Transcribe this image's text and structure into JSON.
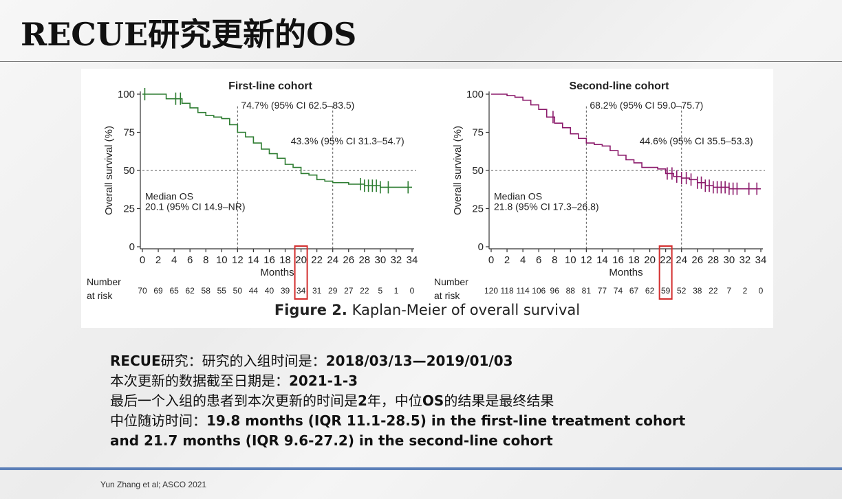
{
  "slide": {
    "title": "RECUE研究更新的OS",
    "caption_bold": "Figure 2.",
    "caption_rest": " Kaplan-Meier of overall survival",
    "citation": "Yun Zhang et al; ASCO 2021"
  },
  "notes": {
    "line1_a": "RECUE",
    "line1_b": "研究：研究的入组时间是：",
    "line1_c": "2018/03/13—2019/01/03",
    "line2_a": "本次更新的数据截至日期是：",
    "line2_b": "2021-1-3",
    "line3_a": "最后一个入组的患者到本次更新的时间是",
    "line3_b": "2",
    "line3_c": "年，中位",
    "line3_d": "OS",
    "line3_e": "的结果是最终结果",
    "line4_a": "中位随访时间：",
    "line4_b": "19.8 months (IQR 11.1-28.5) in the first-line treatment cohort",
    "line5": "and 21.7 months (IQR 9.6-27.2) in the second-line cohort"
  },
  "colors": {
    "first_line": "#2e7d32",
    "second_line": "#8b1a6b",
    "highlight_box": "#d32f2f",
    "reference": "#555555"
  },
  "chart_data": [
    {
      "type": "line",
      "title": "First-line cohort",
      "xlabel": "Months",
      "ylabel": "Overall survival (%)",
      "xlim": [
        0,
        34
      ],
      "ylim": [
        0,
        100
      ],
      "xticks": [
        0,
        2,
        4,
        6,
        8,
        10,
        12,
        14,
        16,
        18,
        20,
        22,
        24,
        26,
        28,
        30,
        32,
        34
      ],
      "yticks": [
        0,
        25,
        50,
        75,
        100
      ],
      "series": [
        {
          "x": [
            0,
            2,
            3,
            4,
            5,
            6,
            7,
            8,
            9,
            10,
            11,
            12,
            13,
            14,
            15,
            16,
            17,
            18,
            19,
            20,
            21,
            22,
            23,
            24,
            26,
            28,
            30,
            32,
            34
          ],
          "y": [
            100,
            100,
            97,
            97,
            94,
            91,
            88,
            86,
            85,
            84,
            80,
            75,
            72,
            68,
            64,
            61,
            58,
            54,
            52,
            48,
            47,
            44,
            43,
            42,
            41,
            40,
            39,
            39,
            39
          ],
          "censor_x": [
            0.3,
            4.2,
            4.8,
            27.5,
            28,
            28.5,
            29,
            29.5,
            30,
            31,
            33.5
          ]
        }
      ],
      "annotations": [
        {
          "text": "74.7% (95% CI 62.5–83.5)",
          "x": 12,
          "y": 75
        },
        {
          "text": "43.3% (95% CI 31.3–54.7)",
          "x": 24,
          "y": 43.3
        },
        {
          "text": "Median OS",
          "x": 0,
          "y": 34
        },
        {
          "text": "20.1 (95% CI 14.9–NR)",
          "x": 0,
          "y": 27
        }
      ],
      "reference_lines": {
        "h": 50,
        "v": [
          12,
          24
        ]
      },
      "risk_table": {
        "label_line1": "Number",
        "label_line2": "at risk",
        "values": [
          "70",
          "69",
          "65",
          "62",
          "58",
          "55",
          "50",
          "44",
          "40",
          "39",
          "34",
          "31",
          "29",
          "27",
          "22",
          "5",
          "1",
          "0"
        ],
        "highlight_index": 10
      }
    },
    {
      "type": "line",
      "title": "Second-line cohort",
      "xlabel": "Months",
      "ylabel": "Overall survival (%)",
      "xlim": [
        0,
        34
      ],
      "ylim": [
        0,
        100
      ],
      "xticks": [
        0,
        2,
        4,
        6,
        8,
        10,
        12,
        14,
        16,
        18,
        20,
        22,
        24,
        26,
        28,
        30,
        32,
        34
      ],
      "yticks": [
        0,
        25,
        50,
        75,
        100
      ],
      "series": [
        {
          "x": [
            0,
            2,
            3,
            4,
            5,
            6,
            7,
            8,
            9,
            10,
            11,
            12,
            13,
            14,
            15,
            16,
            17,
            18,
            19,
            20,
            21,
            22,
            23,
            24,
            25,
            26,
            27,
            28,
            30,
            32,
            34
          ],
          "y": [
            100,
            99,
            98,
            96,
            93,
            90,
            85,
            81,
            78,
            74,
            71,
            68,
            67,
            66,
            63,
            60,
            57,
            55,
            52,
            52,
            51,
            48,
            46,
            45,
            44,
            42,
            40,
            39,
            38,
            38,
            38
          ],
          "censor_x": [
            7.8,
            22.2,
            22.8,
            23.4,
            24,
            24.6,
            25.2,
            26,
            26.5,
            27,
            27.5,
            28,
            28.5,
            29,
            29.5,
            30,
            30.5,
            31,
            32.5,
            33.5
          ]
        }
      ],
      "annotations": [
        {
          "text": "68.2% (95% CI 59.0–75.7)",
          "x": 12,
          "y": 68.2
        },
        {
          "text": "44.6% (95% CI 35.5–53.3)",
          "x": 24,
          "y": 44.6
        },
        {
          "text": "Median OS",
          "x": 0,
          "y": 34
        },
        {
          "text": "21.8 (95% CI 17.3–26.8)",
          "x": 0,
          "y": 27
        }
      ],
      "reference_lines": {
        "h": 50,
        "v": [
          12,
          24
        ]
      },
      "risk_table": {
        "label_line1": "Number",
        "label_line2": "at risk",
        "values": [
          "120",
          "118",
          "114",
          "106",
          "96",
          "88",
          "81",
          "77",
          "74",
          "67",
          "62",
          "59",
          "52",
          "38",
          "22",
          "7",
          "2",
          "0"
        ],
        "highlight_index": 11
      }
    }
  ]
}
